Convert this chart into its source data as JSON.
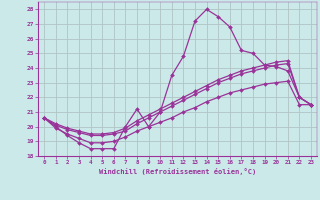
{
  "xlabel": "Windchill (Refroidissement éolien,°C)",
  "bg_color": "#cce9e9",
  "grid_color": "#b0c4c4",
  "line_color": "#993399",
  "ylim": [
    18,
    28.5
  ],
  "xlim": [
    -0.5,
    23.5
  ],
  "yticks": [
    18,
    19,
    20,
    21,
    22,
    23,
    24,
    25,
    26,
    27,
    28
  ],
  "xticks": [
    0,
    1,
    2,
    3,
    4,
    5,
    6,
    7,
    8,
    9,
    10,
    11,
    12,
    13,
    14,
    15,
    16,
    17,
    18,
    19,
    20,
    21,
    22,
    23
  ],
  "series": [
    {
      "x": [
        0,
        1,
        2,
        3,
        4,
        5,
        6,
        7,
        8,
        9,
        10,
        11,
        12,
        13,
        14,
        15,
        16,
        17,
        18,
        19,
        20,
        21,
        22,
        23
      ],
      "y": [
        20.6,
        20.0,
        19.4,
        18.9,
        18.5,
        18.5,
        18.5,
        20.0,
        21.2,
        20.0,
        21.0,
        23.5,
        24.8,
        27.2,
        28.0,
        27.5,
        26.8,
        25.2,
        25.0,
        24.2,
        24.1,
        23.8,
        22.0,
        21.5
      ]
    },
    {
      "x": [
        0,
        1,
        2,
        3,
        4,
        5,
        6,
        7,
        8,
        9,
        10,
        11,
        12,
        13,
        14,
        15,
        16,
        17,
        18,
        19,
        20,
        21,
        22,
        23
      ],
      "y": [
        20.6,
        20.2,
        19.9,
        19.7,
        19.5,
        19.5,
        19.6,
        19.9,
        20.4,
        20.8,
        21.2,
        21.6,
        22.0,
        22.4,
        22.8,
        23.2,
        23.5,
        23.8,
        24.0,
        24.2,
        24.4,
        24.5,
        22.0,
        21.5
      ]
    },
    {
      "x": [
        0,
        1,
        2,
        3,
        4,
        5,
        6,
        7,
        8,
        9,
        10,
        11,
        12,
        13,
        14,
        15,
        16,
        17,
        18,
        19,
        20,
        21,
        22,
        23
      ],
      "y": [
        20.6,
        20.1,
        19.8,
        19.6,
        19.4,
        19.4,
        19.5,
        19.7,
        20.2,
        20.6,
        21.0,
        21.4,
        21.8,
        22.2,
        22.6,
        23.0,
        23.3,
        23.6,
        23.8,
        24.0,
        24.2,
        24.3,
        22.0,
        21.5
      ]
    },
    {
      "x": [
        0,
        1,
        2,
        3,
        4,
        5,
        6,
        7,
        8,
        9,
        10,
        11,
        12,
        13,
        14,
        15,
        16,
        17,
        18,
        19,
        20,
        21,
        22,
        23
      ],
      "y": [
        20.6,
        19.9,
        19.5,
        19.2,
        18.9,
        18.9,
        19.0,
        19.3,
        19.7,
        20.0,
        20.3,
        20.6,
        21.0,
        21.3,
        21.7,
        22.0,
        22.3,
        22.5,
        22.7,
        22.9,
        23.0,
        23.1,
        21.5,
        21.5
      ]
    }
  ]
}
